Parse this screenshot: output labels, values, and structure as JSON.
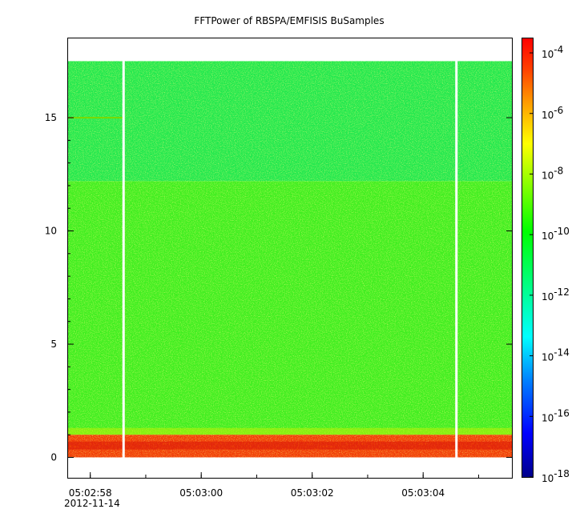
{
  "chart_data": {
    "type": "heatmap",
    "title": "FFTPower of RBSPA/EMFISIS  BuSamples",
    "xlabel": "",
    "ylabel": "",
    "x_axis": {
      "type": "time",
      "date": "2012-11-14",
      "tick_labels": [
        "05:02:58",
        "05:03:00",
        "05:03:02",
        "05:03:04"
      ],
      "range": [
        "05:02:57.6",
        "05:03:05.6"
      ]
    },
    "y_axis": {
      "tick_labels": [
        "0",
        "5",
        "10",
        "15"
      ],
      "ticks": [
        0,
        5,
        10,
        15
      ],
      "ylim": [
        -0.9,
        18.5
      ]
    },
    "colorbar": {
      "scale": "log",
      "range": [
        1e-18,
        0.0003
      ],
      "tick_values": [
        1e-18,
        1e-16,
        1e-14,
        1e-12,
        1e-10,
        1e-08,
        1e-06,
        0.0001
      ],
      "tick_labels": [
        "10",
        "10",
        "10",
        "10",
        "10",
        "10",
        "10",
        "10"
      ],
      "tick_exponents": [
        "-18",
        "-16",
        "-14",
        "-12",
        "-10",
        "-8",
        "-6",
        "-4"
      ],
      "colormap": [
        "#00008b",
        "#0000ff",
        "#0080ff",
        "#00ffff",
        "#00ff80",
        "#00ff00",
        "#80ff00",
        "#ffff00",
        "#ffa000",
        "#ff4000",
        "#ff0000"
      ]
    },
    "data_extent": {
      "y_max": 17.5
    },
    "gaps": [
      "05:02:58.6",
      "05:03:04.6"
    ],
    "bands": [
      {
        "y_range": [
          12.2,
          17.5
        ],
        "power": "1e-11",
        "color": "#22e84e"
      },
      {
        "y_range": [
          1.0,
          12.2
        ],
        "power": "1e-10",
        "color": "#3fee20"
      },
      {
        "y_range": [
          0.0,
          1.0
        ],
        "power": "1e-6",
        "color": "#f03a08"
      }
    ],
    "line_feature": {
      "y": 15.0,
      "x_range": [
        "05:02:57.6",
        "05:02:58.6"
      ]
    }
  }
}
